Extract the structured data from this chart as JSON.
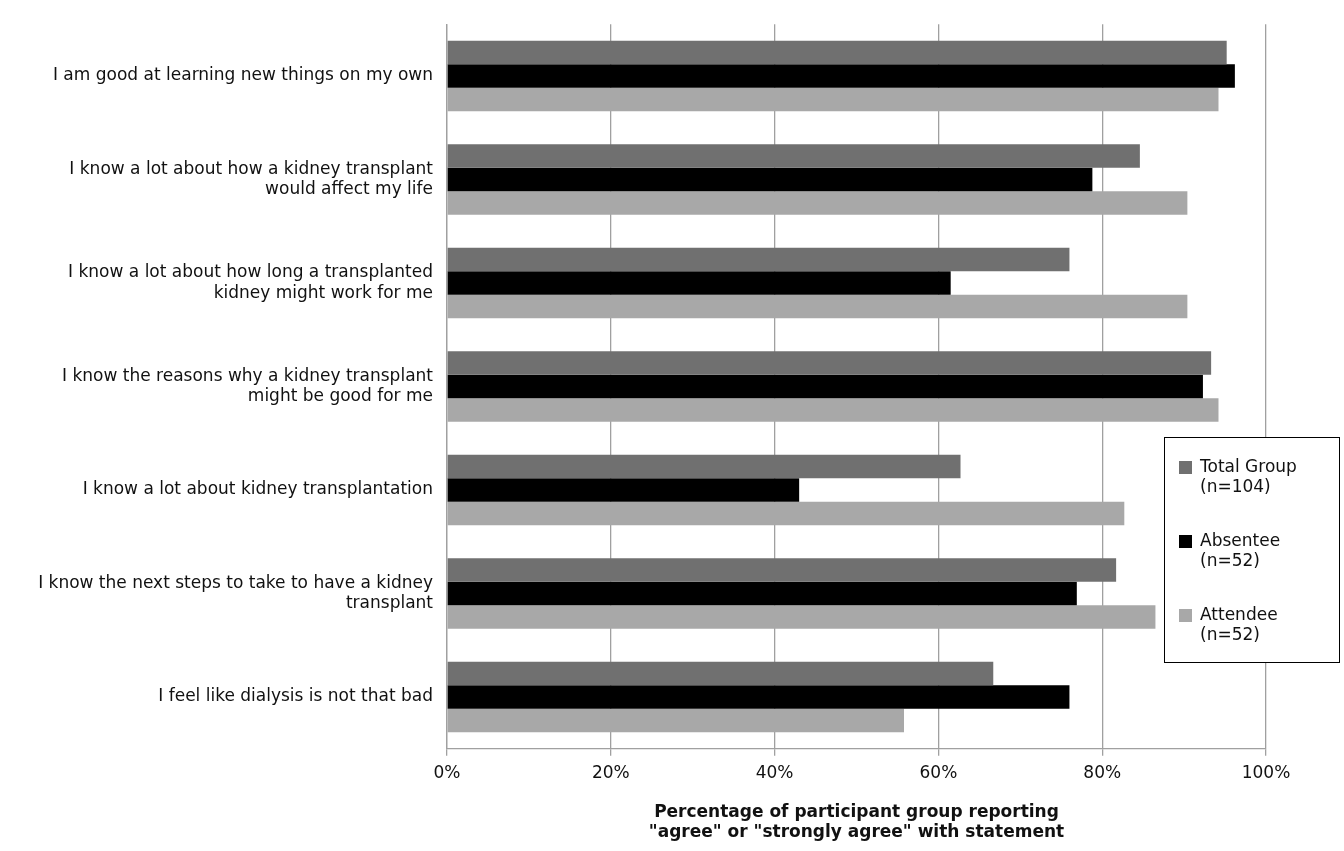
{
  "chart_data": {
    "type": "bar",
    "orientation": "horizontal",
    "categories": [
      "I am good at learning new things on my own",
      "I know a lot about how a kidney transplant would affect my life",
      "I know a lot about how long a transplanted kidney might work for me",
      "I know the reasons why a kidney transplant might be good for me",
      "I know a lot about kidney transplantation",
      "I know the next steps to take to have a kidney transplant",
      "I feel like dialysis is not that bad"
    ],
    "series": [
      {
        "name": "Total Group (n=104)",
        "color": "#707070",
        "values": [
          95.2,
          84.6,
          76.0,
          93.3,
          62.7,
          81.7,
          66.7
        ]
      },
      {
        "name": "Absentee (n=52)",
        "color": "#000000",
        "values": [
          96.2,
          78.8,
          61.5,
          92.3,
          43.0,
          76.9,
          76.0
        ]
      },
      {
        "name": "Attendee (n=52)",
        "color": "#a8a8a8",
        "values": [
          94.2,
          90.4,
          90.4,
          94.2,
          82.7,
          86.5,
          55.8
        ]
      }
    ],
    "xlim": [
      0,
      100
    ],
    "xticks": [
      {
        "value": 0,
        "label": "0%"
      },
      {
        "value": 20,
        "label": "20%"
      },
      {
        "value": 40,
        "label": "40%"
      },
      {
        "value": 60,
        "label": "60%"
      },
      {
        "value": 80,
        "label": "80%"
      },
      {
        "value": 100,
        "label": "100%"
      }
    ],
    "xlabel": "Percentage of participant group reporting \"agree\" or \"strongly agree\" with statement",
    "grid": "x",
    "legend": "right"
  }
}
